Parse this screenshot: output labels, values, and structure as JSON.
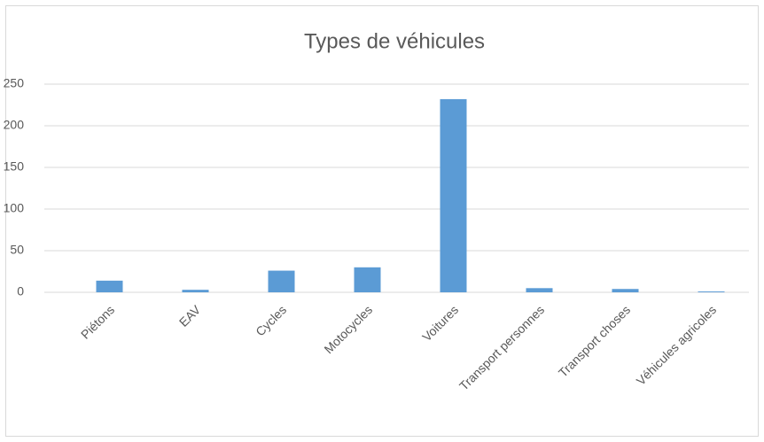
{
  "chart_data": {
    "type": "bar",
    "title": "Types de véhicules",
    "categories": [
      "Piétons",
      "EAV",
      "Cycles",
      "Motocycles",
      "Voitures",
      "Transport personnes",
      "Transport choses",
      "Véhicules agricoles"
    ],
    "values": [
      14,
      3,
      26,
      30,
      232,
      5,
      4,
      1
    ],
    "color": "#5b9bd5",
    "ylim": [
      0,
      250
    ],
    "yticks": [
      0,
      50,
      100,
      150,
      200,
      250
    ],
    "grid": true
  }
}
